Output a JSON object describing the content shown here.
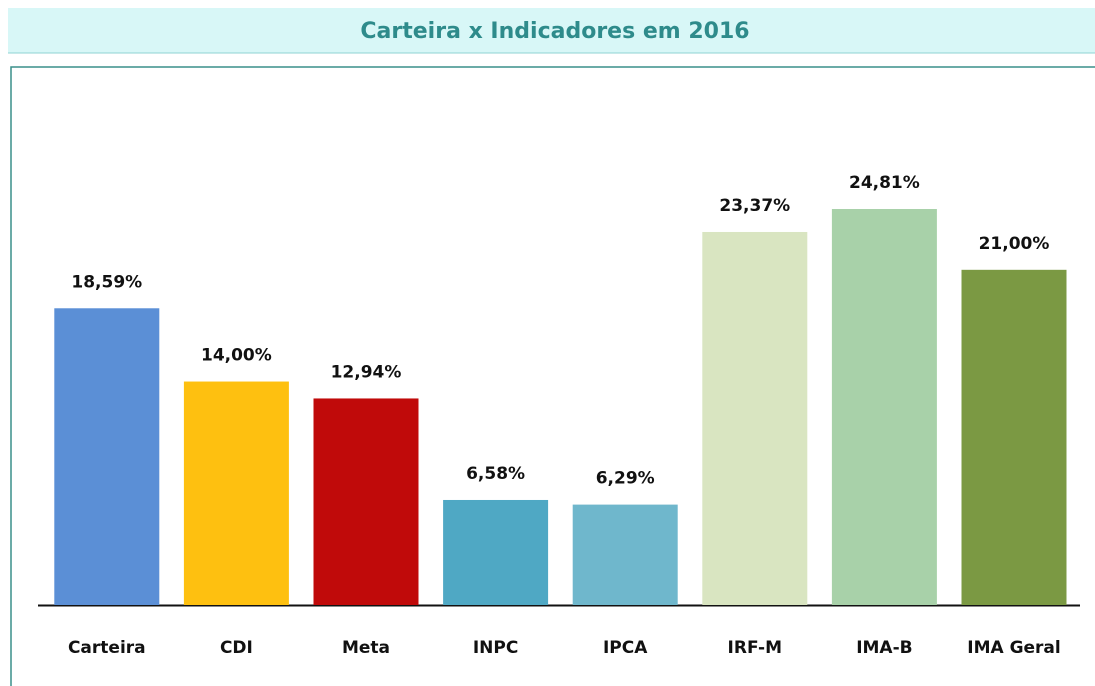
{
  "chart_data": {
    "type": "bar",
    "title": "Carteira x Indicadores em 2016",
    "categories": [
      "Carteira",
      "CDI",
      "Meta",
      "INPC",
      "IPCA",
      "IRF-M",
      "IMA-B",
      "IMA Geral"
    ],
    "values": [
      18.59,
      14.0,
      12.94,
      6.58,
      6.29,
      23.37,
      24.81,
      21.0
    ],
    "value_labels": [
      "18,59%",
      "14,00%",
      "12,94%",
      "6,58%",
      "6,29%",
      "23,37%",
      "24,81%",
      "21,00%"
    ],
    "colors": [
      "#5b8fd6",
      "#fec010",
      "#c00a0a",
      "#4fa8c4",
      "#6fb7cc",
      "#d9e5c1",
      "#a8d1a9",
      "#7b9943"
    ]
  }
}
